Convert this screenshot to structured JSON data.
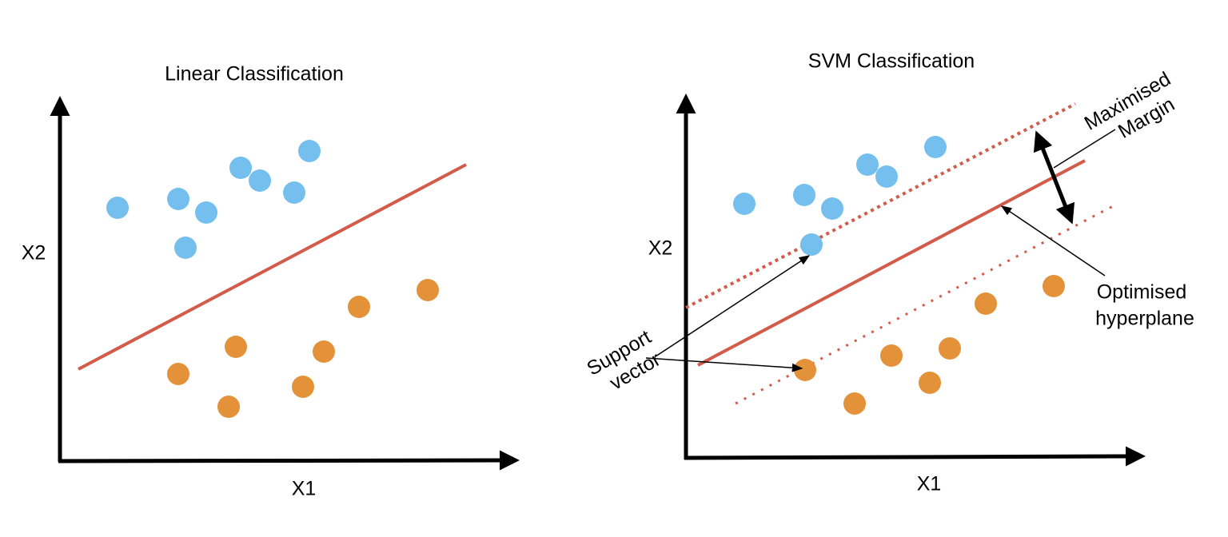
{
  "left": {
    "title": "Linear Classification",
    "x_label": "X1",
    "y_label": "X2"
  },
  "right": {
    "title": "SVM Classification",
    "x_label": "X1",
    "y_label": "X2",
    "annotations": {
      "margin": [
        "Maximised",
        "Margin"
      ],
      "hyperplane": [
        "Optimised",
        "hyperplane"
      ],
      "support": [
        "Support",
        "vector"
      ]
    }
  }
}
